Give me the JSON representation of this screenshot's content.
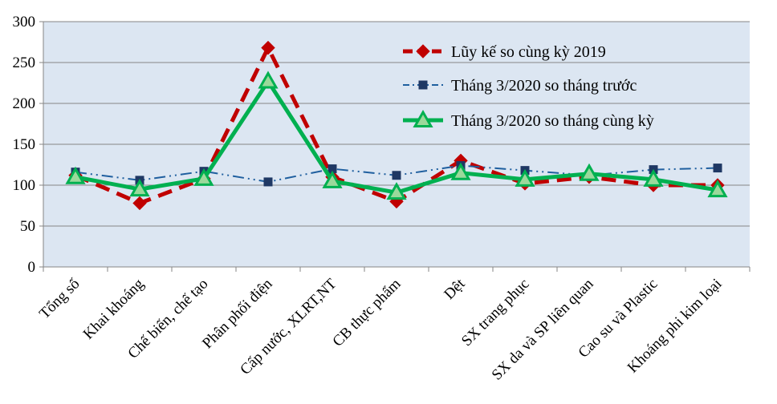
{
  "chart_data": {
    "type": "line",
    "title": "",
    "xlabel": "",
    "ylabel": "",
    "ylim": [
      0,
      300
    ],
    "yticks": [
      0,
      50,
      100,
      150,
      200,
      250,
      300
    ],
    "grid": true,
    "legend_position": "top-right",
    "plot_background": "#dce6f2",
    "categories": [
      "Tổng số",
      "Khai khoáng",
      "Chế biến, chế tạo",
      "Phân phối điện",
      "Cấp nước, XLRT,NT",
      "CB thực phẩm",
      "Dệt",
      "SX trang phục",
      "SX da và SP liên quan",
      "Cao su và Plastic",
      "Khoáng phi kim loại"
    ],
    "series": [
      {
        "name": "Lũy kế so cùng kỳ 2019",
        "color": "#c00000",
        "style": "dashed",
        "marker": "diamond",
        "values": [
          112,
          78,
          108,
          268,
          110,
          80,
          130,
          102,
          110,
          100,
          100
        ]
      },
      {
        "name": "Tháng 3/2020  so tháng trước",
        "color": "#1f5f9f",
        "style": "dashdot",
        "marker": "square",
        "values": [
          116,
          106,
          117,
          104,
          120,
          112,
          124,
          118,
          112,
          119,
          121
        ]
      },
      {
        "name": "Tháng 3/2020  so tháng cùng kỳ",
        "color": "#00b050",
        "style": "solid",
        "marker": "triangle",
        "values": [
          110,
          95,
          108,
          227,
          105,
          91,
          115,
          107,
          114,
          107,
          94
        ]
      }
    ]
  }
}
